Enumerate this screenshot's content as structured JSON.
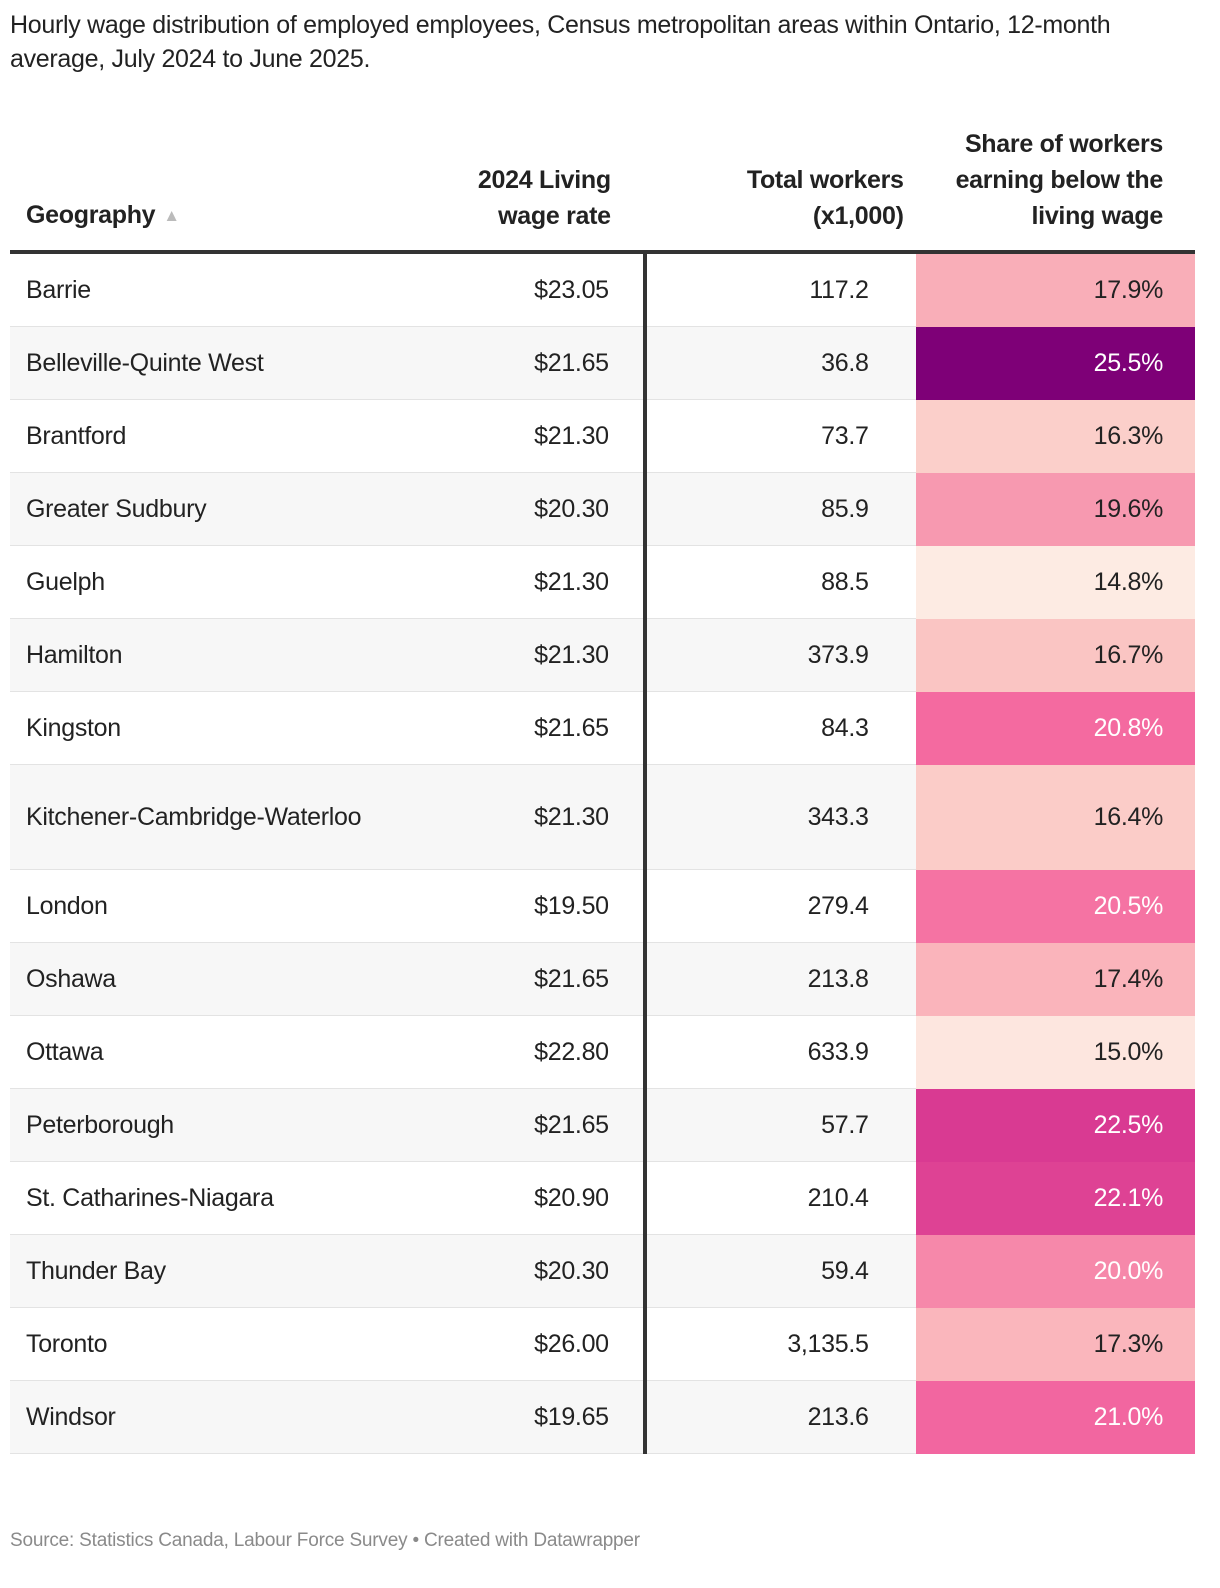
{
  "title": "Hourly wage distribution of employed employees, Census metropolitan areas within Ontario, 12-month average, July 2024 to June 2025.",
  "table": {
    "headers": {
      "geography": "Geography",
      "sort_icon": "▲",
      "wage": "2024 Living wage rate",
      "total": "Total workers (x1,000)",
      "share": "Share of workers earning below the living wage"
    },
    "rows": [
      {
        "geography": "Barrie",
        "wage": "$23.05",
        "total": "117.2",
        "share": "17.9%",
        "color": "#f9aeb8",
        "text_color": "#222222"
      },
      {
        "geography": "Belleville-Quinte West",
        "wage": "$21.65",
        "total": "36.8",
        "share": "25.5%",
        "color": "#7e0077",
        "text_color": "#ffffff"
      },
      {
        "geography": "Brantford",
        "wage": "$21.30",
        "total": "73.7",
        "share": "16.3%",
        "color": "#fbcfca",
        "text_color": "#222222"
      },
      {
        "geography": "Greater Sudbury",
        "wage": "$20.30",
        "total": "85.9",
        "share": "19.6%",
        "color": "#f799b0",
        "text_color": "#222222"
      },
      {
        "geography": "Guelph",
        "wage": "$21.30",
        "total": "88.5",
        "share": "14.8%",
        "color": "#fdebe3",
        "text_color": "#222222"
      },
      {
        "geography": "Hamilton",
        "wage": "$21.30",
        "total": "373.9",
        "share": "16.7%",
        "color": "#fac5c3",
        "text_color": "#222222"
      },
      {
        "geography": "Kingston",
        "wage": "$21.65",
        "total": "84.3",
        "share": "20.8%",
        "color": "#f46aa0",
        "text_color": "#ffffff"
      },
      {
        "geography": "Kitchener-Cambridge-Waterloo",
        "wage": "$21.30",
        "total": "343.3",
        "share": "16.4%",
        "color": "#fbccc8",
        "text_color": "#222222"
      },
      {
        "geography": "London",
        "wage": "$19.50",
        "total": "279.4",
        "share": "20.5%",
        "color": "#f573a3",
        "text_color": "#ffffff"
      },
      {
        "geography": "Oshawa",
        "wage": "$21.65",
        "total": "213.8",
        "share": "17.4%",
        "color": "#fab4bb",
        "text_color": "#222222"
      },
      {
        "geography": "Ottawa",
        "wage": "$22.80",
        "total": "633.9",
        "share": "15.0%",
        "color": "#fde6df",
        "text_color": "#222222"
      },
      {
        "geography": "Peterborough",
        "wage": "$21.65",
        "total": "57.7",
        "share": "22.5%",
        "color": "#d93a92",
        "text_color": "#ffffff"
      },
      {
        "geography": "St. Catharines-Niagara",
        "wage": "$20.90",
        "total": "210.4",
        "share": "22.1%",
        "color": "#de4294",
        "text_color": "#ffffff"
      },
      {
        "geography": "Thunder Bay",
        "wage": "$20.30",
        "total": "59.4",
        "share": "20.0%",
        "color": "#f688aa",
        "text_color": "#ffffff"
      },
      {
        "geography": "Toronto",
        "wage": "$26.00",
        "total": "3,135.5",
        "share": "17.3%",
        "color": "#fab6bc",
        "text_color": "#222222"
      },
      {
        "geography": "Windsor",
        "wage": "$19.65",
        "total": "213.6",
        "share": "21.0%",
        "color": "#f266a0",
        "text_color": "#ffffff"
      }
    ]
  },
  "footer": "Source: Statistics Canada, Labour Force Survey • Created with Datawrapper"
}
